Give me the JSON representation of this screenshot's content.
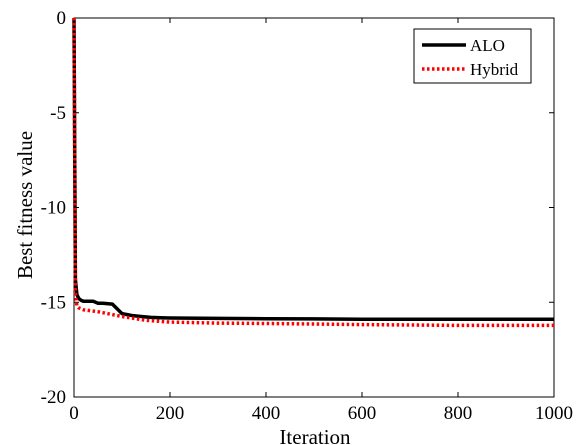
{
  "chart_data": {
    "type": "line",
    "xlabel": "Iteration",
    "ylabel": "Best fitness value",
    "xlim": [
      0,
      1000
    ],
    "ylim": [
      -20,
      0
    ],
    "xticks": [
      "0",
      "200",
      "400",
      "600",
      "800",
      "1000"
    ],
    "yticks": [
      "0",
      "-5",
      "-10",
      "-15",
      "-20"
    ],
    "grid": false,
    "legend_position": "top-right",
    "series": [
      {
        "name": "ALO",
        "color": "#000000",
        "style": "solid",
        "x": [
          0,
          3,
          6,
          10,
          15,
          20,
          40,
          50,
          60,
          80,
          90,
          100,
          120,
          140,
          160,
          180,
          200,
          300,
          400,
          500,
          600,
          700,
          800,
          900,
          1000
        ],
        "y": [
          0,
          -13.8,
          -14.6,
          -14.8,
          -14.9,
          -14.95,
          -14.95,
          -15.05,
          -15.05,
          -15.1,
          -15.35,
          -15.6,
          -15.7,
          -15.75,
          -15.8,
          -15.82,
          -15.83,
          -15.85,
          -15.87,
          -15.88,
          -15.9,
          -15.9,
          -15.9,
          -15.9,
          -15.9
        ]
      },
      {
        "name": "Hybrid",
        "color": "#ff0000",
        "style": "dotted",
        "x": [
          0,
          3,
          6,
          10,
          20,
          50,
          100,
          150,
          200,
          300,
          400,
          500,
          600,
          700,
          800,
          900,
          1000
        ],
        "y": [
          0,
          -14.5,
          -15.2,
          -15.3,
          -15.4,
          -15.5,
          -15.75,
          -15.95,
          -16.05,
          -16.1,
          -16.12,
          -16.15,
          -16.18,
          -16.2,
          -16.22,
          -16.22,
          -16.22
        ]
      }
    ]
  }
}
